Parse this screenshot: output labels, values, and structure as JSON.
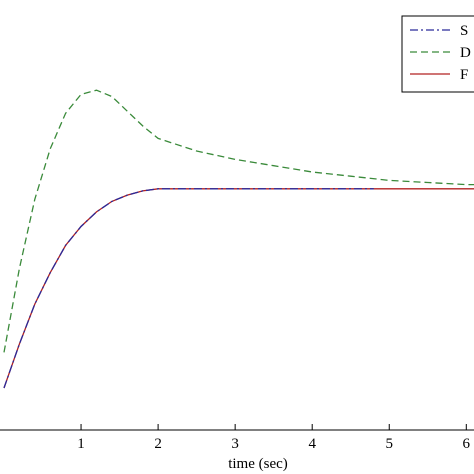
{
  "chart_data": {
    "type": "line",
    "title": "",
    "xlabel": "time (sec)",
    "ylabel": "",
    "xlim": [
      0,
      6.1
    ],
    "xticks": [
      1,
      2,
      3,
      4,
      5,
      6
    ],
    "xtick_labels": [
      "1",
      "2",
      "3",
      "4",
      "5",
      "6"
    ],
    "grid": false,
    "legend": {
      "placement": "top-right",
      "entries": [
        "S",
        "D",
        "F"
      ]
    },
    "series": [
      {
        "name": "S",
        "color": "#2a2a9a",
        "style": "dash-dot",
        "x": [
          0,
          0.2,
          0.4,
          0.6,
          0.8,
          1.0,
          1.2,
          1.4,
          1.6,
          1.8,
          2.0,
          2.4,
          3.0,
          3.5,
          4.0,
          4.4,
          4.8
        ],
        "y": [
          0.05,
          0.26,
          0.45,
          0.6,
          0.73,
          0.82,
          0.89,
          0.94,
          0.97,
          0.99,
          1.0,
          1.0,
          1.0,
          1.0,
          1.0,
          1.0,
          1.0
        ]
      },
      {
        "name": "D",
        "color": "#3a8a3a",
        "style": "dashed",
        "x": [
          0,
          0.2,
          0.4,
          0.6,
          0.8,
          1.0,
          1.2,
          1.4,
          1.6,
          1.8,
          2.0,
          2.5,
          3.0,
          3.5,
          4.0,
          4.5,
          5.0,
          5.5,
          6.0,
          6.1
        ],
        "y": [
          0.22,
          0.62,
          0.95,
          1.19,
          1.36,
          1.45,
          1.47,
          1.44,
          1.37,
          1.3,
          1.24,
          1.18,
          1.14,
          1.11,
          1.08,
          1.06,
          1.04,
          1.03,
          1.02,
          1.02
        ]
      },
      {
        "name": "F",
        "color": "#b22222",
        "style": "solid",
        "x": [
          0,
          0.2,
          0.4,
          0.6,
          0.8,
          1.0,
          1.2,
          1.4,
          1.6,
          1.8,
          2.0,
          2.4,
          3.0,
          4.0,
          5.0,
          6.0,
          6.1
        ],
        "y": [
          0.05,
          0.26,
          0.45,
          0.6,
          0.73,
          0.82,
          0.89,
          0.94,
          0.97,
          0.99,
          1.0,
          1.0,
          1.0,
          1.0,
          1.0,
          1.0,
          1.0
        ]
      }
    ]
  }
}
